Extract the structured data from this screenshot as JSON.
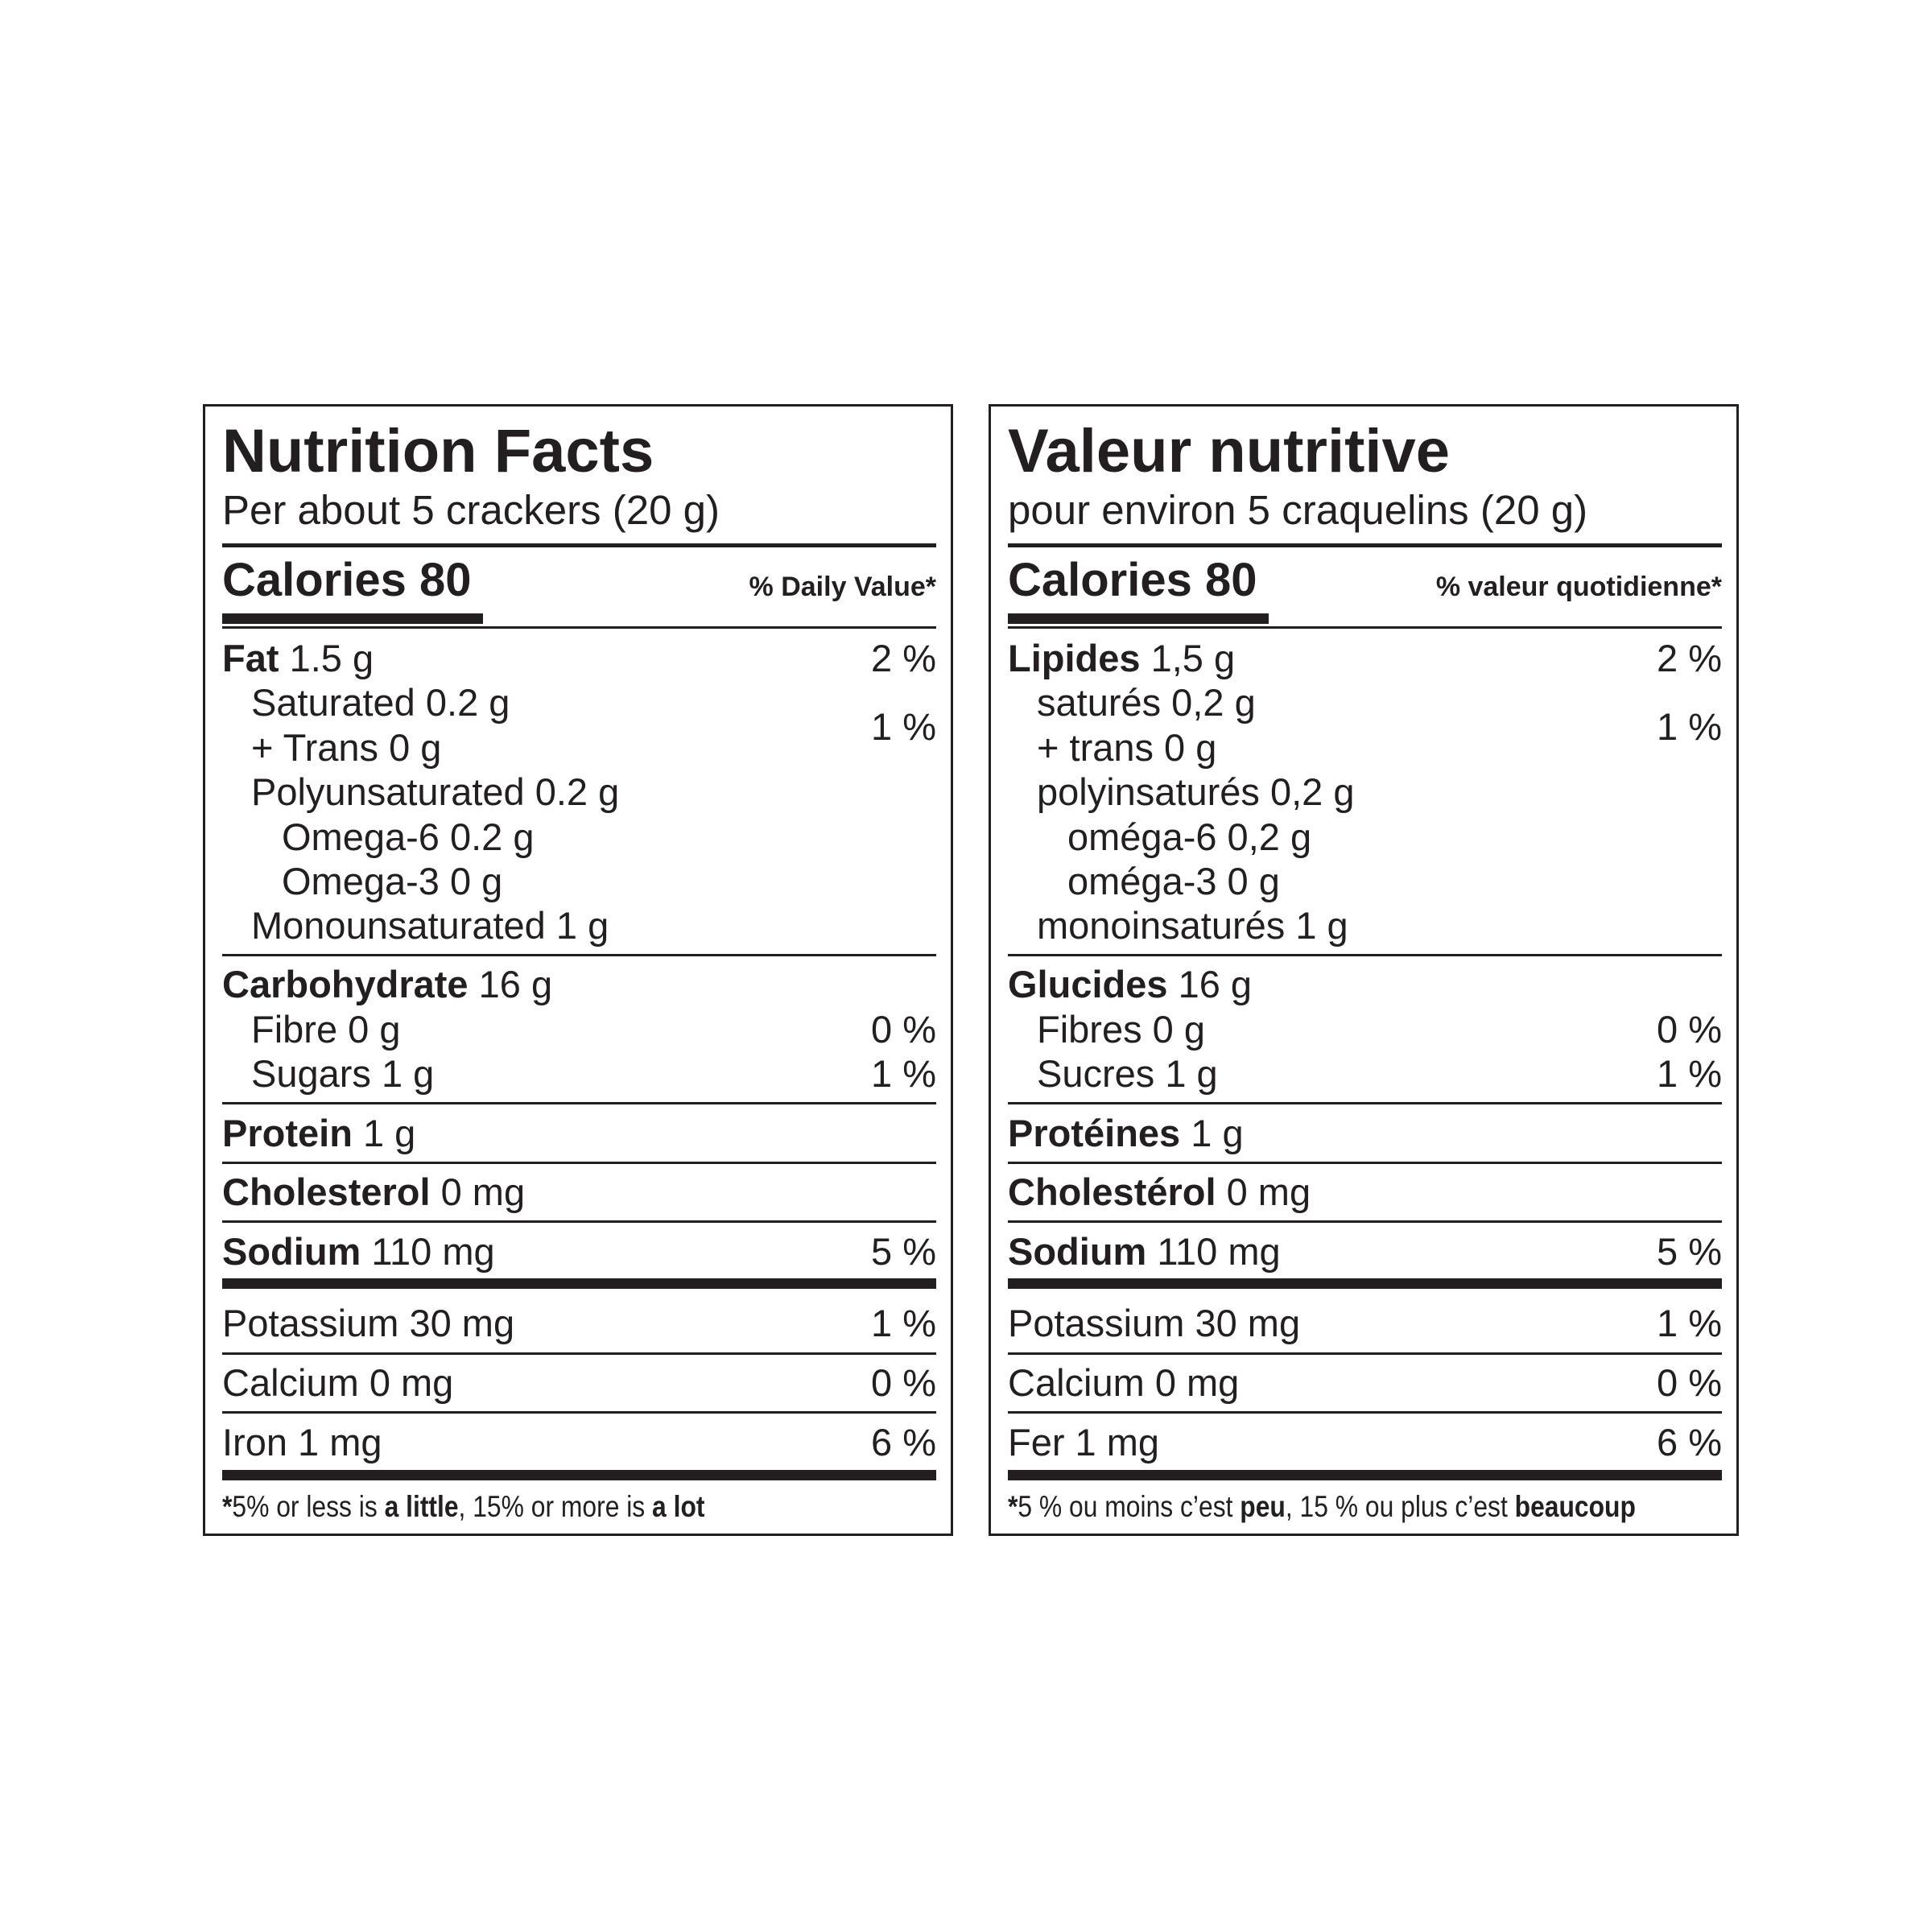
{
  "labels": [
    {
      "title": "Nutrition Facts",
      "serving": "Per about 5 crackers (20 g)",
      "calories": "Calories 80",
      "dv_header": "% Daily Value*",
      "fat": {
        "name": "Fat",
        "amount": "1.5 g",
        "pct": "2 %"
      },
      "saturated": "Saturated 0.2 g",
      "trans": "+ Trans 0 g",
      "sat_trans_pct": "1 %",
      "poly": "Polyunsaturated 0.2 g",
      "omega6": "Omega-6 0.2 g",
      "omega3": "Omega-3 0 g",
      "mono": "Monounsaturated 1 g",
      "carb": {
        "name": "Carbohydrate",
        "amount": "16 g"
      },
      "fibre": {
        "label": "Fibre 0 g",
        "pct": "0 %"
      },
      "sugars": {
        "label": "Sugars 1 g",
        "pct": "1 %"
      },
      "protein": {
        "name": "Protein",
        "amount": "1 g"
      },
      "cholesterol": {
        "name": "Cholesterol",
        "amount": "0 mg"
      },
      "sodium": {
        "name": "Sodium",
        "amount": "110 mg",
        "pct": "5 %"
      },
      "potassium": {
        "label": "Potassium 30 mg",
        "pct": "1 %"
      },
      "calcium": {
        "label": "Calcium 0 mg",
        "pct": "0 %"
      },
      "iron": {
        "label": "Iron 1 mg",
        "pct": "6 %"
      },
      "footnote": {
        "star": "*",
        "p1": "5% or less is ",
        "b1": "a little",
        "p2": ", 15% or more is ",
        "b2": "a lot"
      }
    },
    {
      "title": "Valeur nutritive",
      "serving": "pour environ 5 craquelins (20 g)",
      "calories": "Calories 80",
      "dv_header": "% valeur quotidienne*",
      "fat": {
        "name": "Lipides",
        "amount": "1,5 g",
        "pct": "2 %"
      },
      "saturated": "saturés 0,2 g",
      "trans": "+ trans 0 g",
      "sat_trans_pct": "1 %",
      "poly": "polyinsaturés 0,2 g",
      "omega6": "oméga-6 0,2 g",
      "omega3": "oméga-3 0 g",
      "mono": "monoinsaturés 1 g",
      "carb": {
        "name": "Glucides",
        "amount": "16 g"
      },
      "fibre": {
        "label": "Fibres 0 g",
        "pct": "0 %"
      },
      "sugars": {
        "label": "Sucres 1 g",
        "pct": "1 %"
      },
      "protein": {
        "name": "Protéines",
        "amount": "1 g"
      },
      "cholesterol": {
        "name": "Cholestérol",
        "amount": "0 mg"
      },
      "sodium": {
        "name": "Sodium",
        "amount": "110 mg",
        "pct": "5 %"
      },
      "potassium": {
        "label": "Potassium 30 mg",
        "pct": "1 %"
      },
      "calcium": {
        "label": "Calcium 0 mg",
        "pct": "0 %"
      },
      "iron": {
        "label": "Fer 1 mg",
        "pct": "6 %"
      },
      "footnote": {
        "star": "*",
        "p1": "5 % ou moins c’est ",
        "b1": "peu",
        "p2": ", 15 % ou plus c’est ",
        "b2": "beaucoup"
      }
    }
  ]
}
